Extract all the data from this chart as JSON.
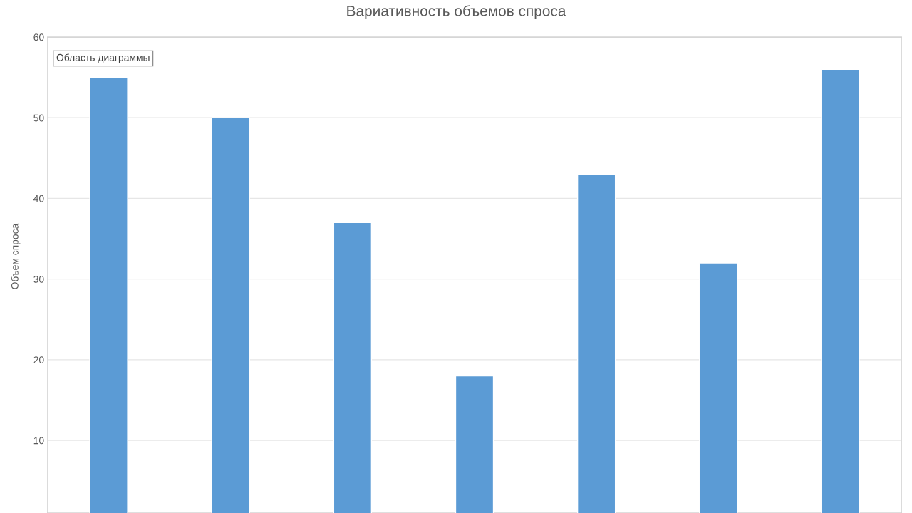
{
  "chart_data": {
    "type": "bar",
    "title": "Вариативность объемов спроса",
    "ylabel": "Объем спроса",
    "categories": [
      null,
      null,
      null,
      null,
      null,
      null,
      null
    ],
    "values": [
      55,
      50,
      37,
      18,
      43,
      32,
      56
    ],
    "color": "#5b9bd5",
    "ylim": [
      1,
      60
    ],
    "yticks": [
      10,
      20,
      30,
      40,
      50,
      60
    ],
    "grid": "y",
    "annotations": [
      "Область диаграммы"
    ]
  }
}
